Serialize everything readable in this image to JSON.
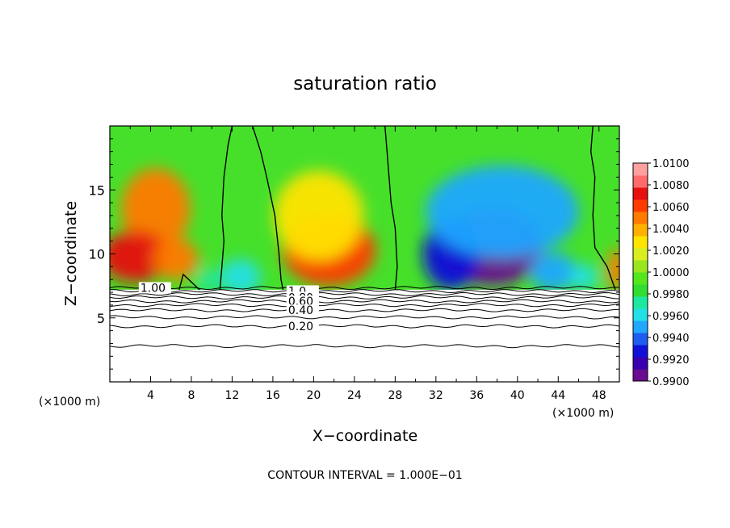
{
  "chart_data": {
    "type": "heatmap",
    "title": "saturation ratio",
    "xlabel": "X−coordinate",
    "ylabel": "Z−coordinate",
    "x_unit_left": "(×1000 m)",
    "x_unit_right": "(×1000 m)",
    "xlim": [
      0,
      50
    ],
    "ylim": [
      0,
      20
    ],
    "x_ticks": [
      4,
      8,
      12,
      16,
      20,
      24,
      28,
      32,
      36,
      40,
      44,
      48
    ],
    "x_tick_labels": [
      "4",
      "8",
      "12",
      "16",
      "20",
      "24",
      "28",
      "32",
      "36",
      "40",
      "44",
      "48"
    ],
    "y_ticks": [
      5,
      10,
      15
    ],
    "y_tick_labels": [
      "5",
      "10",
      "15"
    ],
    "footer": "CONTOUR INTERVAL = 1.000E−01",
    "colorbar": {
      "min": 0.99,
      "max": 1.01,
      "tick_labels": [
        "1.0100",
        "1.0080",
        "1.0060",
        "1.0040",
        "1.0020",
        "1.0000",
        "0.9980",
        "0.9960",
        "0.9940",
        "0.9920",
        "0.9900"
      ],
      "colors": [
        "#6a0d8f",
        "#3a00b0",
        "#1010d8",
        "#1f5cf0",
        "#20a8ff",
        "#22e0e6",
        "#1ee8a0",
        "#30dd30",
        "#55e61e",
        "#9ae61e",
        "#d8ee20",
        "#ffe400",
        "#ffb000",
        "#ff7a00",
        "#ff3c00",
        "#e61010",
        "#ff6a6a",
        "#ffa0a0"
      ]
    },
    "cloud_base_km": 7.2,
    "blobs": [
      {
        "x": 4.5,
        "z": 13.5,
        "rx": 3.4,
        "rz": 3.2,
        "value": 1.0045
      },
      {
        "x": 2.5,
        "z": 9.8,
        "rx": 3.4,
        "rz": 2.0,
        "value": 1.0075
      },
      {
        "x": 6.5,
        "z": 9.6,
        "rx": 2.2,
        "rz": 1.6,
        "value": 1.005
      },
      {
        "x": 21.5,
        "z": 10.3,
        "rx": 4.6,
        "rz": 2.8,
        "value": 1.0065
      },
      {
        "x": 20.5,
        "z": 13.0,
        "rx": 4.4,
        "rz": 3.5,
        "value": 1.0025
      },
      {
        "x": 12.8,
        "z": 8.2,
        "rx": 2.0,
        "rz": 1.4,
        "value": 0.9965
      },
      {
        "x": 9.6,
        "z": 7.9,
        "rx": 1.0,
        "rz": 1.0,
        "value": 0.9975
      },
      {
        "x": 37.5,
        "z": 10.5,
        "rx": 5.0,
        "rz": 3.0,
        "value": 0.991
      },
      {
        "x": 33.5,
        "z": 10.0,
        "rx": 2.8,
        "rz": 2.8,
        "value": 0.993
      },
      {
        "x": 38.5,
        "z": 13.3,
        "rx": 7.5,
        "rz": 3.6,
        "value": 0.9955
      },
      {
        "x": 43.5,
        "z": 8.6,
        "rx": 2.3,
        "rz": 1.5,
        "value": 0.995
      },
      {
        "x": 46.5,
        "z": 8.2,
        "rx": 1.4,
        "rz": 1.0,
        "value": 0.9965
      },
      {
        "x": 49.8,
        "z": 8.8,
        "rx": 1.0,
        "rz": 1.6,
        "value": 1.005
      }
    ],
    "zero_contours": [
      [
        [
          10.8,
          7.2
        ],
        [
          11.0,
          9.0
        ],
        [
          11.2,
          11.0
        ],
        [
          11.0,
          13.0
        ],
        [
          11.2,
          16.0
        ],
        [
          11.6,
          18.5
        ],
        [
          12.0,
          20.0
        ]
      ],
      [
        [
          14.0,
          20.0
        ],
        [
          14.8,
          18.0
        ],
        [
          15.4,
          16.0
        ],
        [
          16.2,
          13.0
        ],
        [
          16.6,
          10.0
        ],
        [
          16.8,
          8.0
        ],
        [
          17.0,
          7.2
        ]
      ],
      [
        [
          27.0,
          20.0
        ],
        [
          27.2,
          18.0
        ],
        [
          27.4,
          16.0
        ],
        [
          27.6,
          14.0
        ],
        [
          28.0,
          12.0
        ],
        [
          28.2,
          9.0
        ],
        [
          28.0,
          7.2
        ]
      ],
      [
        [
          47.4,
          20.0
        ],
        [
          47.2,
          18.0
        ],
        [
          47.6,
          16.0
        ],
        [
          47.4,
          13.0
        ],
        [
          47.6,
          10.5
        ],
        [
          48.8,
          9.0
        ],
        [
          49.6,
          7.2
        ]
      ],
      [
        [
          6.8,
          7.2
        ],
        [
          7.2,
          8.4
        ],
        [
          8.0,
          7.8
        ],
        [
          8.8,
          7.2
        ]
      ]
    ],
    "profile_contours": [
      {
        "z": 7.35,
        "label": "1.00",
        "label_x": 3.0
      },
      {
        "z": 7.1,
        "label": "1.0",
        "label_x": 17.5
      },
      {
        "z": 6.85,
        "label": ""
      },
      {
        "z": 6.6,
        "label": "0.80",
        "label_x": 17.5
      },
      {
        "z": 6.3,
        "label": "0.60",
        "label_x": 17.5
      },
      {
        "z": 6.0,
        "label": ""
      },
      {
        "z": 5.6,
        "label": "0.40",
        "label_x": 17.5
      },
      {
        "z": 5.05,
        "label": ""
      },
      {
        "z": 4.35,
        "label": "0.20",
        "label_x": 17.5
      },
      {
        "z": 2.8,
        "label": ""
      }
    ]
  }
}
